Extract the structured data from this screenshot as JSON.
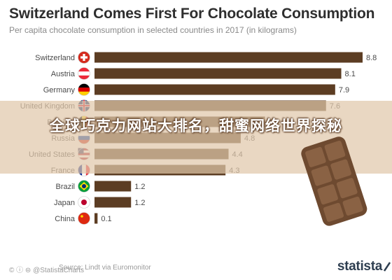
{
  "chart_data": {
    "type": "bar",
    "orientation": "horizontal",
    "title": "Switzerland Comes First For Chocolate Consumption",
    "subtitle": "Per capita chocolate consumption in selected countries in 2017 (in kilograms)",
    "categories": [
      "Switzerland",
      "Austria",
      "Germany",
      "United Kingdom",
      "Belgium",
      "Russia",
      "United States",
      "France",
      "Brazil",
      "Japan",
      "China"
    ],
    "values": [
      8.8,
      8.1,
      7.9,
      7.6,
      5.6,
      4.8,
      4.4,
      4.3,
      1.2,
      1.2,
      0.1
    ],
    "value_labels": [
      "8.8",
      "8.1",
      "7.9",
      "7.6",
      "5.6",
      "4.8",
      "4.4",
      "4.3",
      "1.2",
      "1.2",
      "0.1"
    ],
    "xlim": [
      0,
      8.8
    ],
    "bar_color": "#5c3d23",
    "grid": false,
    "legend": "none"
  },
  "overlay": {
    "text": "全球巧克力网站大排名，甜蜜网络世界探秘"
  },
  "footer": {
    "copyright": "© ⓘ ⊜ @StatistaCharts",
    "source": "Source: Lindt via Euromonitor",
    "brand": "statista"
  },
  "colors": {
    "bar": "#5c3d23",
    "title": "#2e2e2e",
    "subtitle": "#8a8a8a",
    "banner": "#e1c8aa",
    "brand": "#2e3e50"
  },
  "icons": [
    "flag-switzerland-icon",
    "flag-austria-icon",
    "flag-germany-icon",
    "flag-united-kingdom-icon",
    "flag-belgium-icon",
    "flag-russia-icon",
    "flag-united-states-icon",
    "flag-france-icon",
    "flag-brazil-icon",
    "flag-japan-icon",
    "flag-china-icon",
    "chocolate-bar-image",
    "statista-logo-icon"
  ]
}
